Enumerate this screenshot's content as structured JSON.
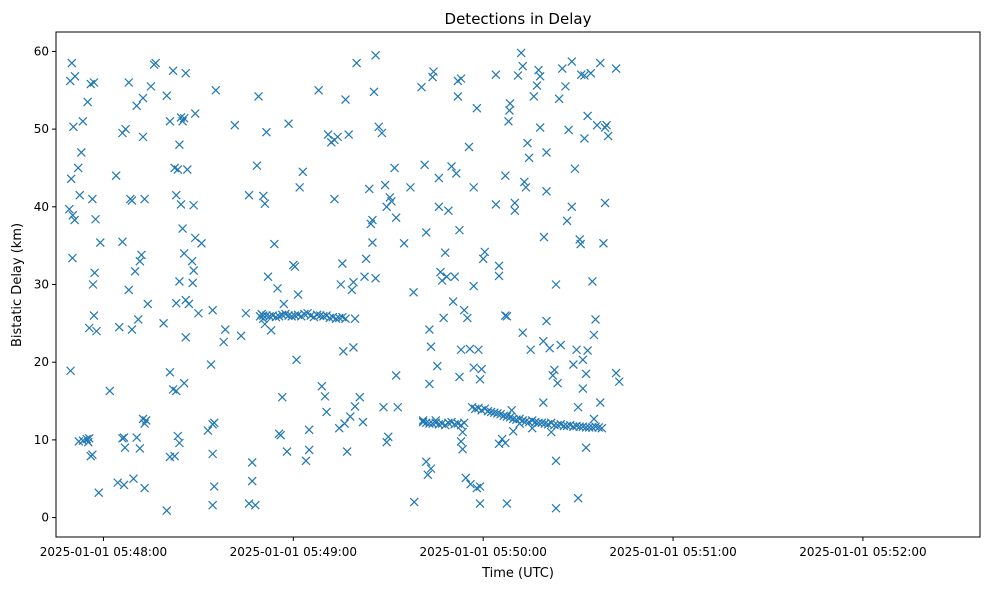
{
  "chart_data": {
    "type": "scatter",
    "title": "Detections in Delay",
    "xlabel": "Time (UTC)",
    "ylabel": "Bistatic Delay (km)",
    "marker": "x",
    "color": "#1f77b4",
    "xlim": [
      -15,
      277
    ],
    "ylim": [
      -2.5,
      62.5
    ],
    "x_units": "seconds after 2025-01-01 05:48:00",
    "xticks": [
      {
        "value": 0,
        "label": "2025-01-01 05:48:00"
      },
      {
        "value": 60,
        "label": "2025-01-01 05:49:00"
      },
      {
        "value": 120,
        "label": "2025-01-01 05:50:00"
      },
      {
        "value": 180,
        "label": "2025-01-01 05:51:00"
      },
      {
        "value": 240,
        "label": "2025-01-01 05:52:00"
      }
    ],
    "yticks": [
      {
        "value": 0,
        "label": "0"
      },
      {
        "value": 10,
        "label": "10"
      },
      {
        "value": 20,
        "label": "20"
      },
      {
        "value": 30,
        "label": "30"
      },
      {
        "value": 40,
        "label": "40"
      },
      {
        "value": 50,
        "label": "50"
      },
      {
        "value": 60,
        "label": "60"
      }
    ],
    "points": [
      [
        -10.5,
        56.2
      ],
      [
        -10,
        58.5
      ],
      [
        -9.5,
        50.3
      ],
      [
        -9,
        56.8
      ],
      [
        -10.8,
        39.7
      ],
      [
        -10.2,
        43.6
      ],
      [
        -9.7,
        38.9
      ],
      [
        -9.1,
        38.3
      ],
      [
        -9.8,
        33.4
      ],
      [
        -10.4,
        18.9
      ],
      [
        -8,
        45
      ],
      [
        -7,
        47
      ],
      [
        -6.5,
        51
      ],
      [
        -7.5,
        41.5
      ],
      [
        -5,
        53.5
      ],
      [
        -4,
        55.8
      ],
      [
        -3,
        56
      ],
      [
        -3.5,
        41
      ],
      [
        -2.5,
        38.4
      ],
      [
        -4.5,
        24.4
      ],
      [
        -3.3,
        30
      ],
      [
        -2.8,
        31.5
      ],
      [
        -3,
        26
      ],
      [
        -2.2,
        24
      ],
      [
        -7.8,
        9.8
      ],
      [
        -6.5,
        9.9
      ],
      [
        -5.3,
        10.1
      ],
      [
        -4.5,
        10.2
      ],
      [
        -4,
        7.9
      ],
      [
        -3.5,
        8.1
      ],
      [
        -4.8,
        9.7
      ],
      [
        -1.5,
        3.2
      ],
      [
        -1,
        35.4
      ],
      [
        4,
        44
      ],
      [
        5,
        24.5
      ],
      [
        6,
        49.5
      ],
      [
        6,
        35.5
      ],
      [
        7,
        50
      ],
      [
        8,
        56
      ],
      [
        8.5,
        41
      ],
      [
        9,
        40.8
      ],
      [
        10,
        31.7
      ],
      [
        11,
        25.5
      ],
      [
        11.5,
        33
      ],
      [
        12,
        33.8
      ],
      [
        12.5,
        49
      ],
      [
        10.5,
        53
      ],
      [
        12.5,
        54
      ],
      [
        8,
        29.3
      ],
      [
        9,
        24.2
      ],
      [
        13,
        41
      ],
      [
        14,
        27.5
      ],
      [
        15,
        55.5
      ],
      [
        16,
        58.3
      ],
      [
        16.5,
        58.5
      ],
      [
        2,
        16.3
      ],
      [
        4.5,
        4.5
      ],
      [
        6.5,
        4.2
      ],
      [
        9.5,
        5
      ],
      [
        13,
        3.8
      ],
      [
        6,
        10.2
      ],
      [
        6.5,
        10.3
      ],
      [
        6.8,
        9
      ],
      [
        10.5,
        10.3
      ],
      [
        11.5,
        8.9
      ],
      [
        12.5,
        12.7
      ],
      [
        13,
        12.1
      ],
      [
        13.5,
        12.5
      ],
      [
        19,
        25
      ],
      [
        20,
        54.3
      ],
      [
        21,
        51
      ],
      [
        22,
        57.5
      ],
      [
        22.5,
        45
      ],
      [
        23,
        41.5
      ],
      [
        23.5,
        44.8
      ],
      [
        24,
        48
      ],
      [
        24.5,
        51.5
      ],
      [
        25,
        51
      ],
      [
        25.5,
        51.4
      ],
      [
        26,
        57.2
      ],
      [
        26.5,
        44.8
      ],
      [
        23,
        27.6
      ],
      [
        24,
        30.4
      ],
      [
        24.5,
        40.3
      ],
      [
        25,
        37.2
      ],
      [
        25.5,
        34
      ],
      [
        26,
        28
      ],
      [
        27,
        27.5
      ],
      [
        28,
        33
      ],
      [
        28.5,
        31.8
      ],
      [
        28.2,
        30.2
      ],
      [
        28.5,
        40.2
      ],
      [
        29,
        36
      ],
      [
        30,
        26.3
      ],
      [
        29,
        52
      ],
      [
        31,
        35.3
      ],
      [
        26,
        23.2
      ],
      [
        25.5,
        17.3
      ],
      [
        22,
        16.5
      ],
      [
        23,
        16.3
      ],
      [
        21,
        18.7
      ],
      [
        21,
        7.8
      ],
      [
        22.5,
        7.9
      ],
      [
        23.5,
        10.5
      ],
      [
        24,
        9.6
      ],
      [
        20,
        0.9
      ],
      [
        33,
        11.2
      ],
      [
        34,
        19.7
      ],
      [
        34.5,
        12
      ],
      [
        35,
        12.2
      ],
      [
        34.5,
        8.2
      ],
      [
        35,
        4
      ],
      [
        34.5,
        1.6
      ],
      [
        35.5,
        55
      ],
      [
        34.5,
        26.7
      ],
      [
        38,
        22.6
      ],
      [
        38.5,
        24.2
      ],
      [
        41.5,
        50.5
      ],
      [
        43.5,
        23.4
      ],
      [
        45,
        26.3
      ],
      [
        46,
        41.5
      ],
      [
        46,
        1.8
      ],
      [
        47,
        4.7
      ],
      [
        47,
        7.1
      ],
      [
        48,
        1.6
      ],
      [
        49,
        54.2
      ],
      [
        48.5,
        45.3
      ],
      [
        49.5,
        25.9
      ],
      [
        50,
        26.2
      ],
      [
        50.5,
        25.6
      ],
      [
        51,
        24.9
      ],
      [
        50.5,
        41.4
      ],
      [
        51,
        40.4
      ],
      [
        51.5,
        49.6
      ],
      [
        52,
        31
      ],
      [
        53,
        24.1
      ],
      [
        54,
        35.2
      ],
      [
        55,
        29.5
      ],
      [
        55.5,
        10.8
      ],
      [
        56,
        10.6
      ],
      [
        56.5,
        15.5
      ],
      [
        57,
        27.5
      ],
      [
        58.5,
        50.7
      ],
      [
        58,
        8.5
      ],
      [
        60,
        32.5
      ],
      [
        60.5,
        32.3
      ],
      [
        61,
        20.3
      ],
      [
        61.5,
        28.7
      ],
      [
        62,
        42.5
      ],
      [
        63,
        44.5
      ],
      [
        64,
        7.3
      ],
      [
        65,
        8.7
      ],
      [
        65,
        11.3
      ],
      [
        50.5,
        26
      ],
      [
        51.5,
        26
      ],
      [
        52.5,
        25.9
      ],
      [
        53.5,
        26
      ],
      [
        54.5,
        25.8
      ],
      [
        55.5,
        25.9
      ],
      [
        56.5,
        26.1
      ],
      [
        57.5,
        26.2
      ],
      [
        58.5,
        26
      ],
      [
        59.5,
        25.9
      ],
      [
        60.5,
        26
      ],
      [
        61.5,
        26.1
      ],
      [
        62.5,
        25.9
      ],
      [
        63.5,
        26.2
      ],
      [
        64.5,
        26.3
      ],
      [
        65.5,
        26
      ],
      [
        66.5,
        25.8
      ],
      [
        67.5,
        26.1
      ],
      [
        68.5,
        26
      ],
      [
        69.5,
        25.9
      ],
      [
        70.5,
        26
      ],
      [
        71.5,
        25.7
      ],
      [
        72.5,
        25.8
      ],
      [
        73.5,
        25.6
      ],
      [
        74.5,
        25.7
      ],
      [
        75.5,
        25.8
      ],
      [
        76.5,
        25.6
      ],
      [
        68,
        55
      ],
      [
        69,
        16.9
      ],
      [
        70,
        15.6
      ],
      [
        70.5,
        13.6
      ],
      [
        71,
        49.3
      ],
      [
        72,
        48.3
      ],
      [
        73,
        41
      ],
      [
        73,
        48.6
      ],
      [
        74,
        49
      ],
      [
        74.5,
        11.5
      ],
      [
        75,
        30
      ],
      [
        75.5,
        32.7
      ],
      [
        75.8,
        21.4
      ],
      [
        76.2,
        12.1
      ],
      [
        77,
        8.5
      ],
      [
        76.5,
        53.8
      ],
      [
        77.5,
        49.3
      ],
      [
        78,
        13
      ],
      [
        78.5,
        29.3
      ],
      [
        79,
        30.3
      ],
      [
        79.5,
        25.6
      ],
      [
        79,
        21.9
      ],
      [
        79.5,
        14.3
      ],
      [
        80,
        58.5
      ],
      [
        81,
        15.5
      ],
      [
        82,
        12.3
      ],
      [
        82.5,
        31
      ],
      [
        83,
        33.3
      ],
      [
        84,
        42.3
      ],
      [
        84.5,
        37.8
      ],
      [
        85,
        38.3
      ],
      [
        85,
        35.4
      ],
      [
        85.5,
        54.8
      ],
      [
        86,
        30.8
      ],
      [
        86,
        59.5
      ],
      [
        87,
        50.3
      ],
      [
        88,
        49.5
      ],
      [
        88.5,
        14.2
      ],
      [
        89,
        42.8
      ],
      [
        89.5,
        40
      ],
      [
        89.5,
        9.7
      ],
      [
        90,
        10.4
      ],
      [
        90.5,
        41.2
      ],
      [
        91,
        40.7
      ],
      [
        92,
        45
      ],
      [
        92.5,
        38.6
      ],
      [
        92.5,
        18.3
      ],
      [
        93,
        14.2
      ],
      [
        95,
        35.3
      ],
      [
        97,
        42.5
      ],
      [
        98,
        29
      ],
      [
        98.2,
        2
      ],
      [
        100.5,
        55.4
      ],
      [
        101,
        12.5
      ],
      [
        101.5,
        45.4
      ],
      [
        102,
        36.7
      ],
      [
        102,
        7.2
      ],
      [
        102.5,
        5.5
      ],
      [
        103,
        24.2
      ],
      [
        103.5,
        22
      ],
      [
        103,
        17.2
      ],
      [
        103.5,
        6.3
      ],
      [
        104,
        56.7
      ],
      [
        104.3,
        57.4
      ],
      [
        105,
        12.5
      ],
      [
        105.5,
        19.5
      ],
      [
        106,
        40
      ],
      [
        106,
        43.7
      ],
      [
        106.5,
        31.6
      ],
      [
        107,
        30.5
      ],
      [
        107.5,
        25.7
      ],
      [
        108,
        34.1
      ],
      [
        108.5,
        31
      ],
      [
        109,
        39.5
      ],
      [
        110,
        45.2
      ],
      [
        110.5,
        27.8
      ],
      [
        111,
        31
      ],
      [
        111.5,
        44.3
      ],
      [
        112,
        56.2
      ],
      [
        112,
        54.2
      ],
      [
        112.5,
        37
      ],
      [
        112.5,
        18.1
      ],
      [
        113,
        56.5
      ],
      [
        113,
        21.6
      ],
      [
        113,
        9.8
      ],
      [
        113.5,
        8.8
      ],
      [
        113.5,
        11
      ],
      [
        114,
        26.7
      ],
      [
        114.5,
        5.1
      ],
      [
        115,
        25.7
      ],
      [
        115.5,
        47.7
      ],
      [
        115.8,
        21.7
      ],
      [
        116,
        4.3
      ],
      [
        117,
        29.8
      ],
      [
        117,
        19.3
      ],
      [
        118,
        52.7
      ],
      [
        117,
        42.5
      ],
      [
        118,
        3.8
      ],
      [
        119,
        1.8
      ],
      [
        119,
        4
      ],
      [
        120,
        33.3
      ],
      [
        120.5,
        34.2
      ],
      [
        119,
        17.8
      ],
      [
        119.5,
        19.1
      ],
      [
        118.5,
        21.6
      ],
      [
        101,
        12.3
      ],
      [
        102,
        12.2
      ],
      [
        103,
        12.1
      ],
      [
        104,
        12.1
      ],
      [
        105,
        12.2
      ],
      [
        106,
        12
      ],
      [
        107,
        12.1
      ],
      [
        108,
        11.9
      ],
      [
        109,
        12.2
      ],
      [
        110,
        12.3
      ],
      [
        111,
        12
      ],
      [
        112,
        12.1
      ],
      [
        113,
        11.9
      ],
      [
        114,
        12.2
      ],
      [
        116.5,
        14.2
      ],
      [
        117.5,
        14
      ],
      [
        118.5,
        14.1
      ],
      [
        119.5,
        13.8
      ],
      [
        120.5,
        14
      ],
      [
        121.5,
        13.7
      ],
      [
        122.5,
        13.6
      ],
      [
        123.5,
        13.5
      ],
      [
        124.5,
        13.4
      ],
      [
        125.5,
        13.3
      ],
      [
        126.5,
        13.1
      ],
      [
        127.5,
        13
      ],
      [
        128.5,
        12.9
      ],
      [
        129.5,
        12.7
      ],
      [
        130.5,
        12.6
      ],
      [
        131.5,
        12.7
      ],
      [
        132.5,
        12.5
      ],
      [
        133.5,
        12.4
      ],
      [
        134.5,
        12.3
      ],
      [
        135.5,
        12.5
      ],
      [
        136.5,
        12.3
      ],
      [
        137.5,
        12.2
      ],
      [
        138.5,
        12.2
      ],
      [
        139.5,
        12.1
      ],
      [
        140.5,
        12
      ],
      [
        141.5,
        12.2
      ],
      [
        142.5,
        11.9
      ],
      [
        143.5,
        11.9
      ],
      [
        144.5,
        12
      ],
      [
        145.5,
        11.8
      ],
      [
        146.5,
        11.8
      ],
      [
        147.5,
        11.9
      ],
      [
        148.5,
        11.7
      ],
      [
        149.5,
        11.8
      ],
      [
        150.5,
        11.7
      ],
      [
        151.5,
        11.7
      ],
      [
        152.5,
        11.6
      ],
      [
        153.5,
        11.6
      ],
      [
        154.5,
        11.6
      ],
      [
        155.5,
        11.7
      ],
      [
        156.5,
        11.6
      ],
      [
        157.5,
        11.5
      ],
      [
        124,
        57
      ],
      [
        124,
        40.3
      ],
      [
        125,
        31.1
      ],
      [
        125,
        32.4
      ],
      [
        125,
        9.5
      ],
      [
        126,
        10.1
      ],
      [
        127,
        9.6
      ],
      [
        127,
        44
      ],
      [
        127,
        26
      ],
      [
        127.5,
        25.9
      ],
      [
        127.5,
        1.8
      ],
      [
        128,
        51
      ],
      [
        128.3,
        52.4
      ],
      [
        128.5,
        53.3
      ],
      [
        129,
        13.8
      ],
      [
        129.5,
        11.1
      ],
      [
        130,
        39.5
      ],
      [
        130,
        40.5
      ],
      [
        131,
        56.9
      ],
      [
        131.5,
        12.1
      ],
      [
        132,
        59.8
      ],
      [
        132.5,
        58.1
      ],
      [
        132.5,
        23.8
      ],
      [
        133,
        43.2
      ],
      [
        133.5,
        42.5
      ],
      [
        134,
        48.2
      ],
      [
        134.5,
        46.3
      ],
      [
        135,
        21.6
      ],
      [
        135.5,
        11.5
      ],
      [
        136,
        54.2
      ],
      [
        137,
        55.6
      ],
      [
        137.5,
        57.6
      ],
      [
        138,
        56.8
      ],
      [
        138,
        50.2
      ],
      [
        139,
        22.7
      ],
      [
        139,
        14.8
      ],
      [
        139.2,
        36.1
      ],
      [
        140,
        47
      ],
      [
        140,
        25.3
      ],
      [
        141,
        21.8
      ],
      [
        140,
        42
      ],
      [
        141.5,
        11
      ],
      [
        142,
        18.3
      ],
      [
        142.5,
        19
      ],
      [
        143,
        30
      ],
      [
        143.5,
        17.3
      ],
      [
        143,
        7.3
      ],
      [
        144,
        53.9
      ],
      [
        143,
        1.2
      ],
      [
        144.5,
        22.2
      ],
      [
        145,
        57.8
      ],
      [
        146,
        55.5
      ],
      [
        146.5,
        38.2
      ],
      [
        147,
        49.9
      ],
      [
        148,
        58.7
      ],
      [
        148,
        40
      ],
      [
        148.5,
        19.7
      ],
      [
        149,
        44.9
      ],
      [
        149.5,
        21.6
      ],
      [
        150,
        14.2
      ],
      [
        150,
        2.5
      ],
      [
        150.5,
        35.8
      ],
      [
        150.8,
        35.2
      ],
      [
        151,
        57
      ],
      [
        151.5,
        20.3
      ],
      [
        151.5,
        16.6
      ],
      [
        152,
        48.8
      ],
      [
        152,
        56.9
      ],
      [
        152.5,
        18.5
      ],
      [
        152.5,
        9
      ],
      [
        153,
        21.5
      ],
      [
        153,
        51.7
      ],
      [
        154,
        57.2
      ],
      [
        154.5,
        30.4
      ],
      [
        155,
        23.5
      ],
      [
        155,
        12.7
      ],
      [
        155.5,
        25.5
      ],
      [
        156,
        50.5
      ],
      [
        157,
        14.8
      ],
      [
        157,
        58.5
      ],
      [
        158,
        35.3
      ],
      [
        158.5,
        50.2
      ],
      [
        158.5,
        40.5
      ],
      [
        159,
        50.5
      ],
      [
        159.5,
        49.1
      ],
      [
        162,
        57.8
      ],
      [
        162,
        18.6
      ],
      [
        163,
        17.5
      ]
    ]
  }
}
